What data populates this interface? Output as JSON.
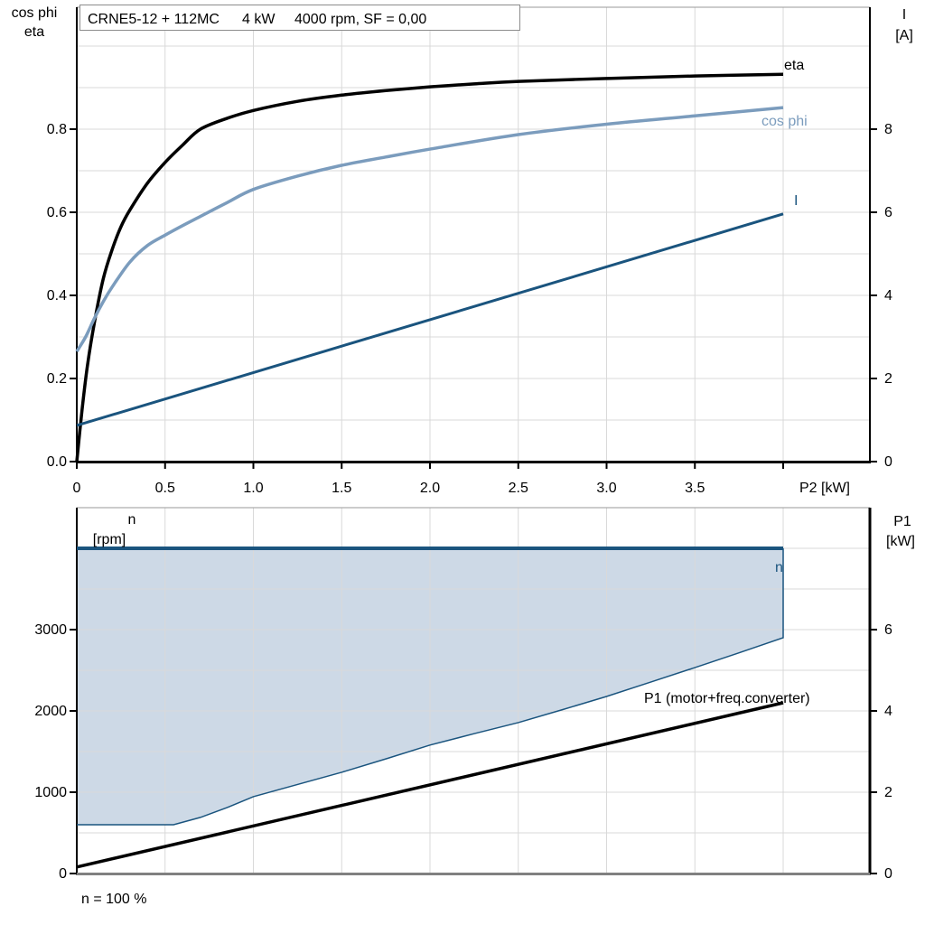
{
  "title": {
    "model": "CRNE5-12 + 112MC",
    "power": "4 kW",
    "speed_sf": "4000 rpm, SF = 0,00"
  },
  "colors": {
    "eta": "#000000",
    "cos_phi": "#7b9cbd",
    "current": "#1a547e",
    "region_fill": "#cdd9e6",
    "region_line": "#1a547e",
    "p1_line": "#000000",
    "grid": "#d9d9d9",
    "axis": "#000000",
    "frame_gray": "#808080"
  },
  "chart_data": [
    {
      "type": "line",
      "title": "CRNE5-12 + 112MC  4 kW  4000 rpm, SF = 0,00",
      "x_axis": {
        "label": "P2 [kW]",
        "ticks": [
          0,
          0.5,
          1.0,
          1.5,
          2.0,
          2.5,
          3.0,
          3.5,
          4.0
        ],
        "tick_labels": [
          "0",
          "0.5",
          "1.0",
          "1.5",
          "2.0",
          "2.5",
          "3.0",
          "3.5",
          ""
        ],
        "range": [
          0,
          4.49
        ],
        "grid_values": [
          0.5,
          1.0,
          1.5,
          2.0,
          2.5,
          3.0,
          3.5,
          4.0
        ]
      },
      "left_axis": {
        "label_line1": "cos phi",
        "label_line2": "eta",
        "ticks": [
          0.0,
          0.2,
          0.4,
          0.6,
          0.8
        ],
        "tick_labels": [
          "0.0",
          "0.2",
          "0.4",
          "0.6",
          "0.8"
        ],
        "range": [
          0,
          1.09
        ],
        "grid_values": [
          0.1,
          0.2,
          0.3,
          0.4,
          0.5,
          0.6,
          0.7,
          0.8,
          0.9,
          1.0
        ]
      },
      "right_axis": {
        "label_line1": "I",
        "label_line2": "[A]",
        "ticks": [
          0,
          2,
          4,
          6,
          8
        ],
        "tick_labels": [
          "0",
          "2",
          "4",
          "6",
          "8"
        ],
        "range": [
          0,
          10.9
        ]
      },
      "series": [
        {
          "name": "eta",
          "label": "eta",
          "axis": "left",
          "color_key": "eta",
          "width": 3.5,
          "smooth": true,
          "points": [
            [
              0,
              0
            ],
            [
              0.03,
              0.125
            ],
            [
              0.06,
              0.23
            ],
            [
              0.1,
              0.335
            ],
            [
              0.15,
              0.44
            ],
            [
              0.2,
              0.51
            ],
            [
              0.25,
              0.565
            ],
            [
              0.3,
              0.605
            ],
            [
              0.4,
              0.67
            ],
            [
              0.5,
              0.72
            ],
            [
              0.6,
              0.762
            ],
            [
              0.7,
              0.8
            ],
            [
              0.85,
              0.826
            ],
            [
              1.0,
              0.845
            ],
            [
              1.25,
              0.867
            ],
            [
              1.5,
              0.882
            ],
            [
              1.75,
              0.893
            ],
            [
              2.0,
              0.902
            ],
            [
              2.25,
              0.909
            ],
            [
              2.5,
              0.915
            ],
            [
              3.0,
              0.922
            ],
            [
              3.5,
              0.928
            ],
            [
              4.0,
              0.932
            ]
          ]
        },
        {
          "name": "cos phi",
          "label": "cos phi",
          "axis": "left",
          "color_key": "cos_phi",
          "width": 3.5,
          "smooth": true,
          "points": [
            [
              0,
              0.265
            ],
            [
              0.05,
              0.3
            ],
            [
              0.1,
              0.345
            ],
            [
              0.15,
              0.385
            ],
            [
              0.2,
              0.42
            ],
            [
              0.3,
              0.48
            ],
            [
              0.4,
              0.52
            ],
            [
              0.5,
              0.545
            ],
            [
              0.6,
              0.568
            ],
            [
              0.7,
              0.59
            ],
            [
              0.85,
              0.623
            ],
            [
              1.0,
              0.655
            ],
            [
              1.25,
              0.687
            ],
            [
              1.5,
              0.713
            ],
            [
              1.75,
              0.733
            ],
            [
              2.0,
              0.752
            ],
            [
              2.5,
              0.787
            ],
            [
              3.0,
              0.812
            ],
            [
              3.5,
              0.832
            ],
            [
              4.0,
              0.852
            ]
          ]
        },
        {
          "name": "I",
          "label": "I",
          "axis": "right",
          "color_key": "current",
          "width": 3,
          "smooth": false,
          "points": [
            [
              0,
              0.87
            ],
            [
              4.0,
              5.96
            ]
          ]
        }
      ]
    },
    {
      "type": "area",
      "x_axis": {
        "label": "",
        "ticks": [],
        "tick_labels": [],
        "range": [
          0,
          4.49
        ],
        "grid_values": [
          0.5,
          1.0,
          1.5,
          2.0,
          2.5,
          3.0,
          3.5,
          4.0
        ]
      },
      "left_axis": {
        "label_line1": "n",
        "label_line2": "[rpm]",
        "ticks": [
          0,
          1000,
          2000,
          3000
        ],
        "tick_labels": [
          "0",
          "1000",
          "2000",
          "3000"
        ],
        "range": [
          0,
          4500
        ],
        "grid_values": [
          500,
          1000,
          1500,
          2000,
          2500,
          3000,
          3500,
          4000
        ]
      },
      "right_axis": {
        "label_line1": "P1",
        "label_line2": "[kW]",
        "ticks": [
          0,
          2,
          4,
          6
        ],
        "tick_labels": [
          "0",
          "2",
          "4",
          "6"
        ],
        "range": [
          0,
          9
        ]
      },
      "region": {
        "name": "n",
        "label": "n",
        "axis": "left",
        "upper_rpm": 4000,
        "x_range": [
          0,
          4.0
        ],
        "lower_points": [
          [
            0,
            600
          ],
          [
            0.548,
            600
          ],
          [
            0.7,
            690
          ],
          [
            0.85,
            810
          ],
          [
            1.0,
            945
          ],
          [
            1.25,
            1095
          ],
          [
            1.5,
            1245
          ],
          [
            1.75,
            1410
          ],
          [
            2.0,
            1580
          ],
          [
            2.25,
            1720
          ],
          [
            2.5,
            1856
          ],
          [
            2.75,
            2015
          ],
          [
            3.0,
            2178
          ],
          [
            3.25,
            2355
          ],
          [
            3.5,
            2533
          ],
          [
            3.75,
            2715
          ],
          [
            4.0,
            2900
          ]
        ]
      },
      "series": [
        {
          "name": "P1 (motor+freq.converter)",
          "label": "P1 (motor+freq.converter)",
          "axis": "right",
          "color_key": "p1_line",
          "width": 3.5,
          "smooth": false,
          "points": [
            [
              0,
              0.16
            ],
            [
              4.0,
              4.2
            ]
          ]
        }
      ],
      "annotation": "n = 100 %"
    }
  ]
}
